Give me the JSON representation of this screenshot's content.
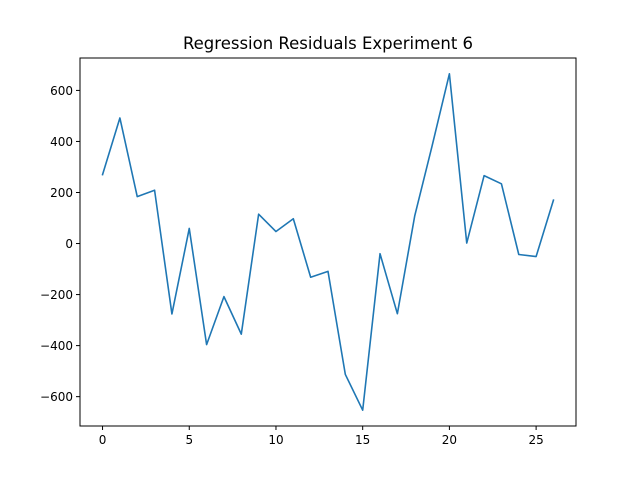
{
  "chart_data": {
    "type": "line",
    "title": "Regression Residuals Experiment 6",
    "xlabel": "",
    "ylabel": "",
    "xlim": [
      -1.3,
      27.3
    ],
    "ylim": [
      -715,
      727
    ],
    "grid": false,
    "xticks": [
      0,
      5,
      10,
      15,
      20,
      25
    ],
    "yticks": [
      -600,
      -400,
      -200,
      0,
      200,
      400,
      600
    ],
    "xtick_labels": [
      "0",
      "5",
      "10",
      "15",
      "20",
      "25"
    ],
    "ytick_labels": [
      "−600",
      "−400",
      "−200",
      "0",
      "200",
      "400",
      "600"
    ],
    "series": [
      {
        "color": "#1f77b4",
        "x": [
          0,
          1,
          2,
          3,
          4,
          5,
          6,
          7,
          8,
          9,
          10,
          11,
          12,
          13,
          14,
          15,
          16,
          17,
          18,
          19,
          20,
          21,
          22,
          23,
          24,
          25,
          26
        ],
        "values": [
          270,
          492,
          184,
          209,
          -276,
          59,
          -396,
          -208,
          -355,
          115,
          47,
          97,
          -132,
          -109,
          -513,
          -653,
          -40,
          -275,
          108,
          382,
          665,
          2,
          266,
          234,
          -43,
          -51,
          170
        ]
      }
    ]
  }
}
